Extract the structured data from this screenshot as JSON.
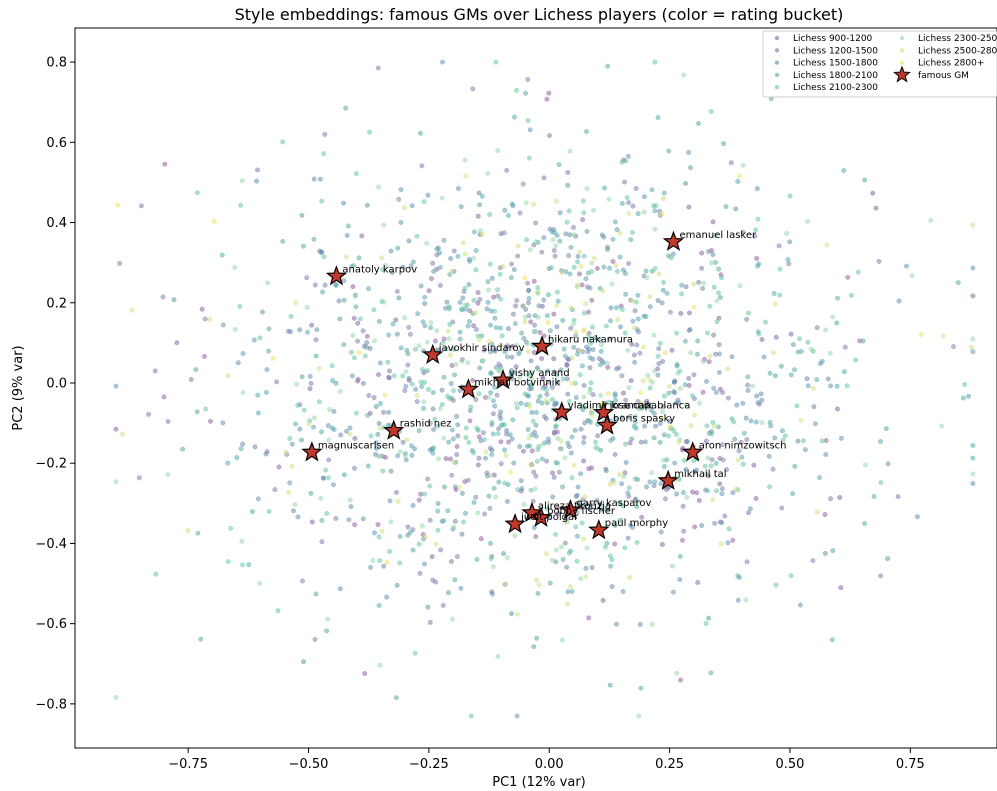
{
  "chart_data": {
    "type": "scatter",
    "title": "Style embeddings: famous GMs over Lichess players (color = rating bucket)",
    "xlabel": "PC1 (12% var)",
    "ylabel": "PC2 (9% var)",
    "xlim": [
      -0.985,
      0.93
    ],
    "ylim": [
      -0.91,
      0.885
    ],
    "xticks": [
      -0.75,
      -0.5,
      -0.25,
      0.0,
      0.25,
      0.5,
      0.75
    ],
    "xtick_labels": [
      "−0.75",
      "−0.50",
      "−0.25",
      "0.00",
      "0.25",
      "0.50",
      "0.75"
    ],
    "yticks": [
      -0.8,
      -0.6,
      -0.4,
      -0.2,
      0.0,
      0.2,
      0.4,
      0.6,
      0.8
    ],
    "ytick_labels": [
      "−0.8",
      "−0.6",
      "−0.4",
      "−0.2",
      "0.0",
      "0.2",
      "0.4",
      "0.6",
      "0.8"
    ],
    "grid": false,
    "legend_placement": "top-right",
    "buckets": [
      {
        "name": "Lichess 900-1200",
        "color": "#8c5a9e",
        "count": 170
      },
      {
        "name": "Lichess 1200-1500",
        "color": "#6f7ca8",
        "count": 300
      },
      {
        "name": "Lichess 1500-1800",
        "color": "#5a8fab",
        "count": 330
      },
      {
        "name": "Lichess 1800-2100",
        "color": "#4ea5a9",
        "count": 320
      },
      {
        "name": "Lichess 2100-2300",
        "color": "#5ec4a0",
        "count": 250
      },
      {
        "name": "Lichess 2300-2500",
        "color": "#94d7a8",
        "count": 170
      },
      {
        "name": "Lichess 2500-2800",
        "color": "#cfe07c",
        "count": 110
      },
      {
        "name": "Lichess 2800+",
        "color": "#f0e060",
        "count": 30
      }
    ],
    "gm_series": {
      "name": "famous GM",
      "color": "#c0392b",
      "points": [
        {
          "label": "emanuel lasker",
          "x": 0.258,
          "y": 0.352
        },
        {
          "label": "anatoly karpov",
          "x": -0.442,
          "y": 0.266
        },
        {
          "label": "javokhir sindarov",
          "x": -0.242,
          "y": 0.07
        },
        {
          "label": "hikaru nakamura",
          "x": -0.015,
          "y": 0.091
        },
        {
          "label": "vishy anand",
          "x": -0.096,
          "y": 0.007
        },
        {
          "label": "mikhail botvinnik",
          "x": -0.168,
          "y": -0.016
        },
        {
          "label": "vladimir kramnik",
          "x": 0.026,
          "y": -0.073
        },
        {
          "label": "jose capablanca",
          "x": 0.113,
          "y": -0.074
        },
        {
          "label": "boris spasky",
          "x": 0.12,
          "y": -0.106
        },
        {
          "label": "rashid nez",
          "x": -0.323,
          "y": -0.119
        },
        {
          "label": "magnuscarlsen",
          "x": -0.493,
          "y": -0.173
        },
        {
          "label": "aron nimzowitsch",
          "x": 0.298,
          "y": -0.173
        },
        {
          "label": "mikhail tal",
          "x": 0.247,
          "y": -0.244
        },
        {
          "label": "garry kasparov",
          "x": 0.044,
          "y": -0.317
        },
        {
          "label": "alireza firouzja",
          "x": -0.036,
          "y": -0.324
        },
        {
          "label": "bobby fischer",
          "x": -0.017,
          "y": -0.336
        },
        {
          "label": "judit polgar",
          "x": -0.071,
          "y": -0.352
        },
        {
          "label": "paul morphy",
          "x": 0.103,
          "y": -0.367
        }
      ]
    }
  }
}
